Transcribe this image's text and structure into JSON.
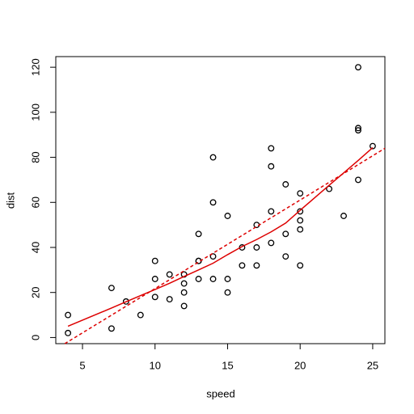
{
  "chart_data": {
    "type": "scatter",
    "xlabel": "speed",
    "ylabel": "dist",
    "xlim": [
      3.16,
      25.84
    ],
    "ylim": [
      -2.72,
      124.72
    ],
    "xticks": [
      5,
      10,
      15,
      20,
      25
    ],
    "yticks": [
      0,
      20,
      40,
      60,
      80,
      100,
      120
    ],
    "grid": false,
    "points": {
      "color": "#000000",
      "x": [
        4,
        4,
        7,
        7,
        8,
        9,
        10,
        10,
        10,
        11,
        11,
        12,
        12,
        12,
        12,
        13,
        13,
        13,
        13,
        14,
        14,
        14,
        14,
        15,
        15,
        15,
        16,
        16,
        17,
        17,
        17,
        18,
        18,
        18,
        18,
        19,
        19,
        19,
        20,
        20,
        20,
        20,
        20,
        22,
        23,
        24,
        24,
        24,
        24,
        25
      ],
      "y": [
        2,
        10,
        4,
        22,
        16,
        10,
        18,
        26,
        34,
        17,
        28,
        14,
        20,
        24,
        28,
        26,
        34,
        34,
        46,
        26,
        36,
        60,
        80,
        20,
        26,
        54,
        32,
        40,
        32,
        40,
        50,
        42,
        56,
        76,
        84,
        36,
        46,
        68,
        32,
        48,
        52,
        56,
        64,
        66,
        54,
        70,
        92,
        93,
        120,
        85
      ]
    },
    "smooth": {
      "color": "#dd0000",
      "x": [
        4,
        7,
        8,
        9,
        10,
        11,
        12,
        13,
        14,
        15,
        16,
        17,
        18,
        19,
        20,
        22,
        23,
        24,
        25
      ],
      "y": [
        5.0,
        13.1,
        15.9,
        18.6,
        21.3,
        24.1,
        27.1,
        30.0,
        33.0,
        36.8,
        40.4,
        43.5,
        46.9,
        50.8,
        56.5,
        67.6,
        73.1,
        78.6,
        84.3
      ]
    },
    "fit": {
      "color": "#dd0000",
      "dashed": true,
      "x": [
        3.78,
        25.84
      ],
      "y": [
        -2.72,
        84.0
      ]
    }
  }
}
